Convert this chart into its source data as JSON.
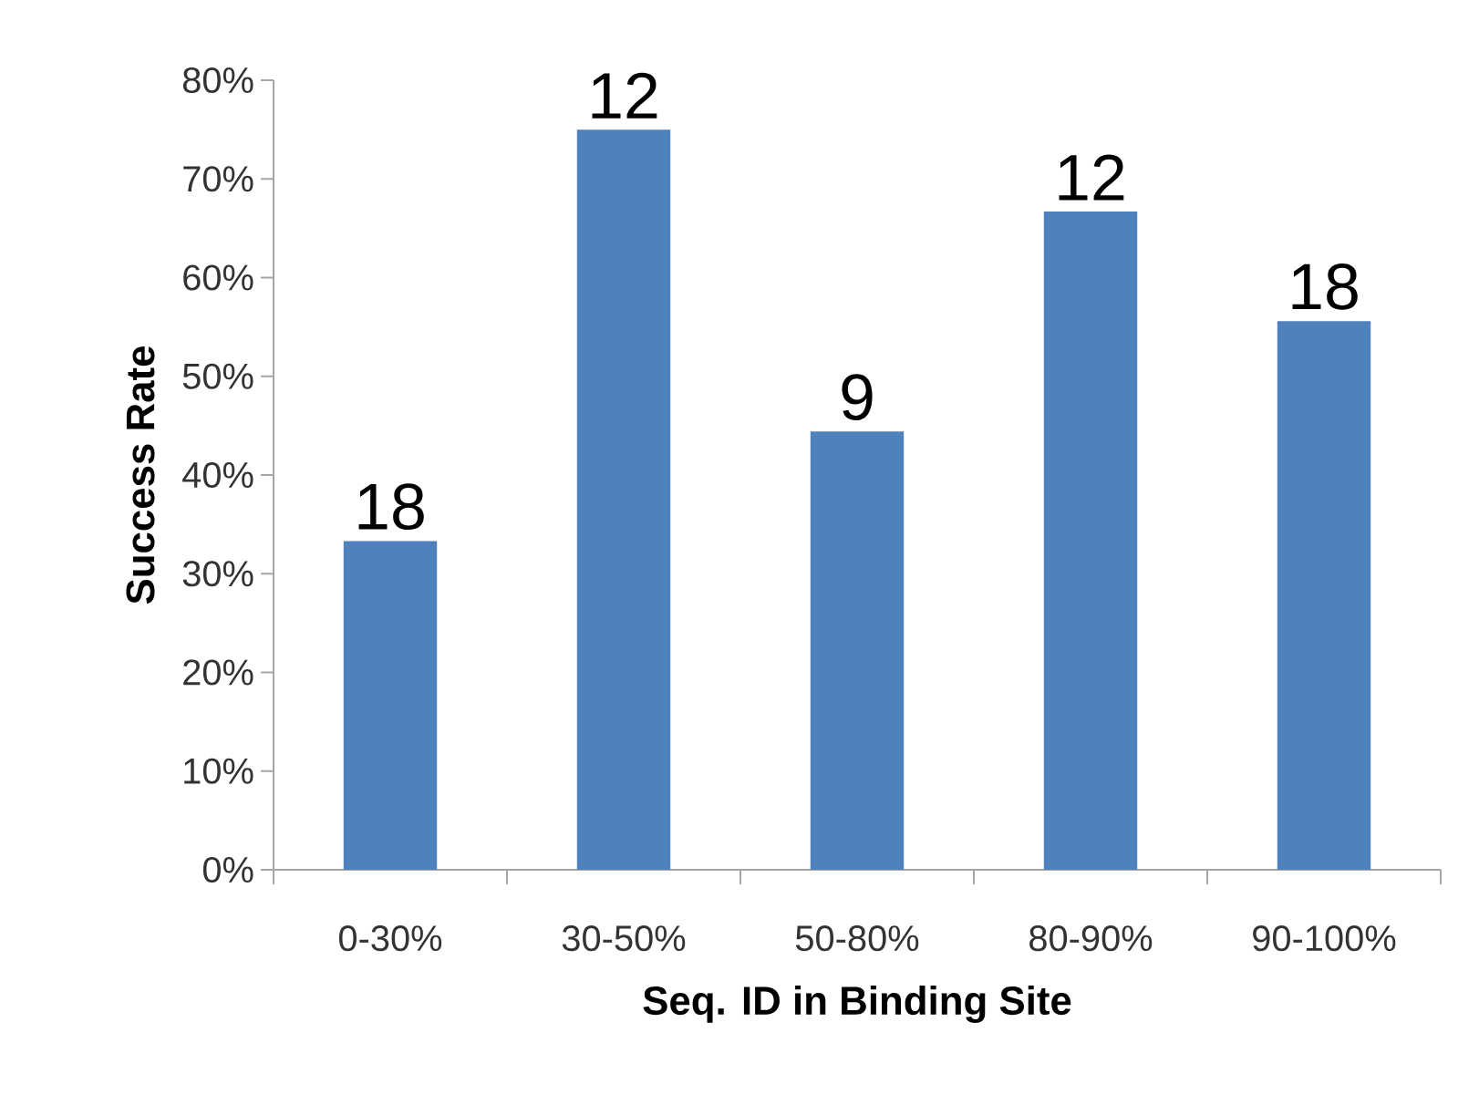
{
  "chart_data": {
    "type": "bar",
    "xlabel": "Seq. ID in Binding Site",
    "ylabel": "Success Rate",
    "categories": [
      "0-30%",
      "30-50%",
      "50-80%",
      "80-90%",
      "90-100%"
    ],
    "values": [
      33.3,
      75,
      44.4,
      66.7,
      55.6
    ],
    "annotations": [
      {
        "text": "18",
        "x": "0-30%",
        "y": 33.3
      },
      {
        "text": "12",
        "x": "30-50%",
        "y": 75
      },
      {
        "text": "9",
        "x": "50-80%",
        "y": 44.4
      },
      {
        "text": "12",
        "x": "80-90%",
        "y": 66.7
      },
      {
        "text": "18",
        "x": "90-100%",
        "y": 55.6
      }
    ],
    "color": "#4f81bd",
    "ylim": [
      0,
      80
    ],
    "yticks": [
      {
        "value": 0,
        "label": "0%"
      },
      {
        "value": 10,
        "label": "10%"
      },
      {
        "value": 20,
        "label": "20%"
      },
      {
        "value": 30,
        "label": "30%"
      },
      {
        "value": 40,
        "label": "40%"
      },
      {
        "value": 50,
        "label": "50%"
      },
      {
        "value": 60,
        "label": "60%"
      },
      {
        "value": 70,
        "label": "70%"
      },
      {
        "value": 80,
        "label": "80%"
      }
    ],
    "grid": false
  }
}
